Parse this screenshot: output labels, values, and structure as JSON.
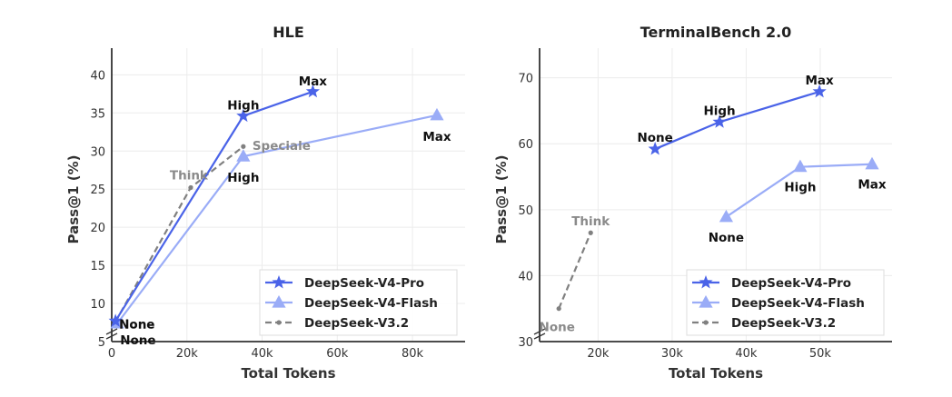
{
  "colors": {
    "pro": "#4a63e8",
    "flash": "#9aacf7",
    "v32": "#808080",
    "label_dark": "#111111",
    "label_gray": "#8a8a8a",
    "grid": "#ececec",
    "axis": "#333333"
  },
  "legend": [
    {
      "name": "DeepSeek-V4-Pro",
      "marker": "star-icon",
      "key": "pro"
    },
    {
      "name": "DeepSeek-V4-Flash",
      "marker": "triangle-icon",
      "key": "flash"
    },
    {
      "name": "DeepSeek-V3.2",
      "marker": "dot-icon",
      "key": "v32"
    }
  ],
  "chart_data": [
    {
      "type": "line",
      "title": "HLE",
      "xlabel": "Total Tokens",
      "ylabel": "Pass@1 (%)",
      "xlim": [
        0,
        94000
      ],
      "ylim": [
        5,
        43.5
      ],
      "xticks": [
        0,
        20000,
        40000,
        60000,
        80000
      ],
      "xtick_labels": [
        "0",
        "20k",
        "40k",
        "60k",
        "80k"
      ],
      "yticks": [
        5,
        10,
        15,
        20,
        25,
        30,
        35,
        40
      ],
      "ytick_labels": [
        "5",
        "10",
        "15",
        "20",
        "25",
        "30",
        "35",
        "40"
      ],
      "axis_break": true,
      "grid": true,
      "legend_position": "lower right",
      "series": [
        {
          "name": "DeepSeek-V4-Pro",
          "key": "pro",
          "style": "solid",
          "marker": "star",
          "points": [
            {
              "x": 1000,
              "y": 7.7,
              "label": "None",
              "dx": 4,
              "dy": 3,
              "anchor": "start",
              "color": "label_dark"
            },
            {
              "x": 35000,
              "y": 34.6,
              "label": "High",
              "dx": 0,
              "dy": -12,
              "anchor": "middle",
              "color": "label_dark"
            },
            {
              "x": 53500,
              "y": 37.8,
              "label": "Max",
              "dx": 0,
              "dy": -12,
              "anchor": "middle",
              "color": "label_dark"
            }
          ]
        },
        {
          "name": "DeepSeek-V4-Flash",
          "key": "flash",
          "style": "solid",
          "marker": "triangle",
          "points": [
            {
              "x": 1500,
              "y": 7.4,
              "label": "None",
              "dx": 3,
              "dy": 18,
              "anchor": "start",
              "color": "label_dark"
            },
            {
              "x": 35000,
              "y": 29.3,
              "label": "High",
              "dx": 0,
              "dy": 23,
              "anchor": "middle",
              "color": "label_dark"
            },
            {
              "x": 86500,
              "y": 34.7,
              "label": "Max",
              "dx": 0,
              "dy": 23,
              "anchor": "middle",
              "color": "label_dark"
            }
          ]
        },
        {
          "name": "DeepSeek-V3.2",
          "key": "v32",
          "style": "dashed",
          "marker": "dot",
          "points": [
            {
              "x": 1000,
              "y": 7.6,
              "label": "None",
              "dx": 4,
              "dy": 3,
              "anchor": "start",
              "color": "label_gray"
            },
            {
              "x": 21000,
              "y": 25.2,
              "label": "Think",
              "dx": -2,
              "dy": -14,
              "anchor": "middle",
              "color": "label_gray"
            },
            {
              "x": 35000,
              "y": 30.6,
              "label": "Speciale",
              "dx": 10,
              "dy": -1,
              "anchor": "start",
              "color": "label_gray"
            }
          ]
        }
      ]
    },
    {
      "type": "line",
      "title": "TerminalBench 2.0",
      "xlabel": "Total Tokens",
      "ylabel": "Pass@1 (%)",
      "xlim": [
        12100,
        59700
      ],
      "ylim": [
        30,
        74.5
      ],
      "xticks": [
        20000,
        30000,
        40000,
        50000
      ],
      "xtick_labels": [
        "20k",
        "30k",
        "40k",
        "50k"
      ],
      "yticks": [
        30,
        40,
        50,
        60,
        70
      ],
      "ytick_labels": [
        "30",
        "40",
        "50",
        "60",
        "70"
      ],
      "axis_break": true,
      "grid": true,
      "legend_position": "lower right",
      "series": [
        {
          "name": "DeepSeek-V4-Pro",
          "key": "pro",
          "style": "solid",
          "marker": "star",
          "points": [
            {
              "x": 27700,
              "y": 59.2,
              "label": "None",
              "dx": 0,
              "dy": -13,
              "anchor": "middle",
              "color": "label_dark"
            },
            {
              "x": 36400,
              "y": 63.3,
              "label": "High",
              "dx": 0,
              "dy": -13,
              "anchor": "middle",
              "color": "label_dark"
            },
            {
              "x": 49900,
              "y": 67.9,
              "label": "Max",
              "dx": 0,
              "dy": -13,
              "anchor": "middle",
              "color": "label_dark"
            }
          ]
        },
        {
          "name": "DeepSeek-V4-Flash",
          "key": "flash",
          "style": "solid",
          "marker": "triangle",
          "points": [
            {
              "x": 37300,
              "y": 48.9,
              "label": "None",
              "dx": 0,
              "dy": 22,
              "anchor": "middle",
              "color": "label_dark"
            },
            {
              "x": 47300,
              "y": 56.5,
              "label": "High",
              "dx": 0,
              "dy": 22,
              "anchor": "middle",
              "color": "label_dark"
            },
            {
              "x": 57000,
              "y": 56.9,
              "label": "Max",
              "dx": 0,
              "dy": 22,
              "anchor": "middle",
              "color": "label_dark"
            }
          ]
        },
        {
          "name": "DeepSeek-V3.2",
          "key": "v32",
          "style": "dashed",
          "marker": "dot",
          "points": [
            {
              "x": 14700,
              "y": 35.0,
              "label": "None",
              "dx": -2,
              "dy": 20,
              "anchor": "middle",
              "color": "label_gray"
            },
            {
              "x": 19000,
              "y": 46.5,
              "label": "Think",
              "dx": 0,
              "dy": -13,
              "anchor": "middle",
              "color": "label_gray"
            }
          ]
        }
      ]
    }
  ]
}
